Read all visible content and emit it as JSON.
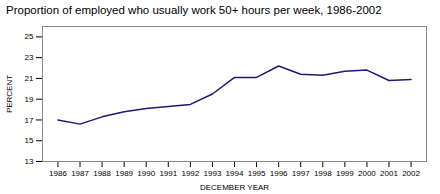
{
  "chart_data": {
    "type": "line",
    "title": "Proportion of employed who usually work 50+ hours per week, 1986-2002",
    "xlabel": "DECEMBER YEAR",
    "ylabel": "PERCENT",
    "x": [
      1986,
      1987,
      1988,
      1989,
      1990,
      1991,
      1992,
      1993,
      1994,
      1995,
      1996,
      1997,
      1998,
      1999,
      2000,
      2001,
      2002
    ],
    "values": [
      17.0,
      16.6,
      17.3,
      17.8,
      18.1,
      18.3,
      18.5,
      19.5,
      21.1,
      21.1,
      22.2,
      21.4,
      21.3,
      21.7,
      21.8,
      20.8,
      20.9
    ],
    "color": "#1a1a7a",
    "xlim": [
      1985.3,
      2002.7
    ],
    "xticks": [
      1986,
      1987,
      1988,
      1989,
      1990,
      1991,
      1992,
      1993,
      1994,
      1995,
      1996,
      1997,
      1998,
      1999,
      2000,
      2001,
      2002
    ],
    "ylim": [
      13,
      26
    ],
    "yticks": [
      13,
      15,
      17,
      19,
      21,
      23,
      25
    ],
    "grid": false
  }
}
